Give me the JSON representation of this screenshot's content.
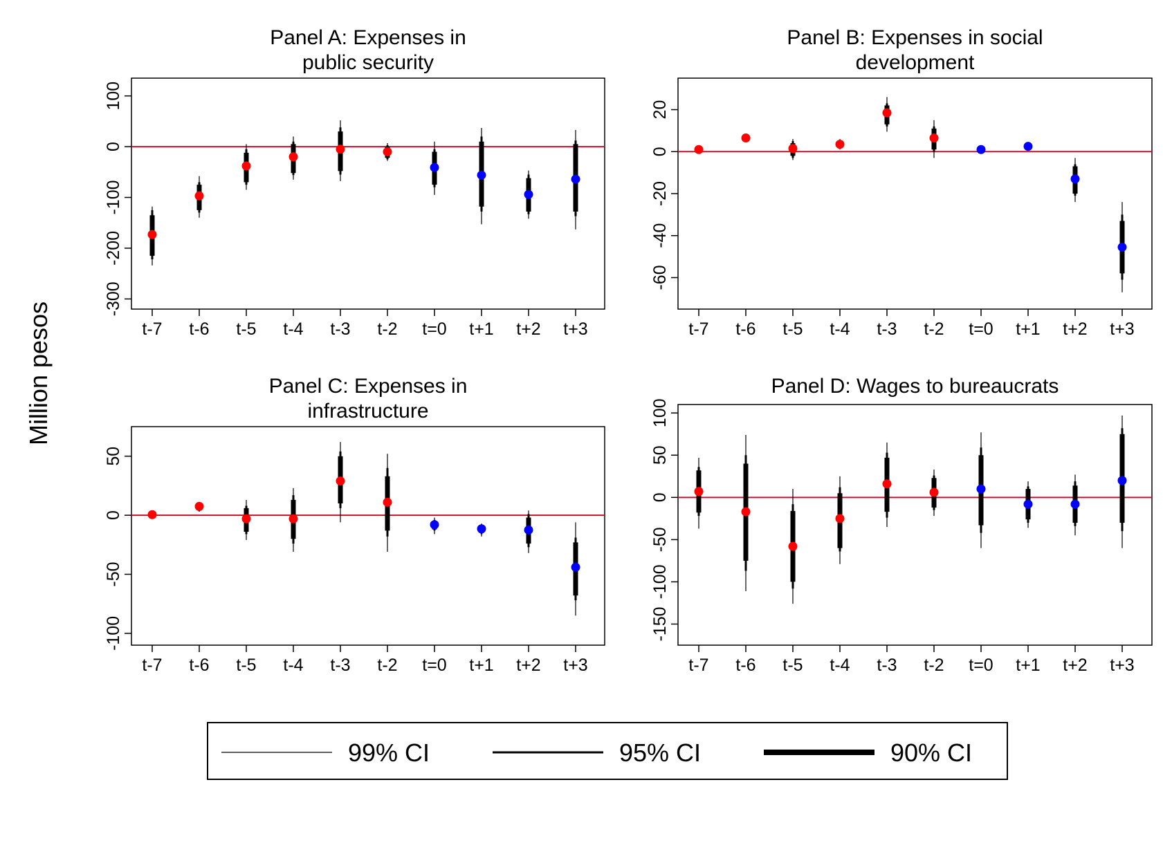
{
  "figure": {
    "ylabel": "Million pesos",
    "legend": [
      {
        "label": "99% CI",
        "stroke_level": "99"
      },
      {
        "label": "95% CI",
        "stroke_level": "95"
      },
      {
        "label": "90% CI",
        "stroke_level": "90"
      }
    ]
  },
  "colors": {
    "pre_point": "#ff0000",
    "post_point": "#0000ff",
    "zero_line": "#c8102e",
    "ci": "#000000"
  },
  "chart_data": [
    {
      "type": "scatter",
      "title_lines": [
        "Panel A: Expenses in",
        "public security"
      ],
      "categories": [
        "t-7",
        "t-6",
        "t-5",
        "t-4",
        "t-3",
        "t-2",
        "t=0",
        "t+1",
        "t+2",
        "t+3"
      ],
      "ylim": [
        -320,
        135
      ],
      "yticks": [
        100,
        0,
        -100,
        -200,
        -300
      ],
      "ytick_labels": [
        "100",
        "0",
        "-100",
        "-200",
        "-300"
      ],
      "points": [
        {
          "x": "t-7",
          "y": -173,
          "group": "pre",
          "ci90": [
            -215,
            -135
          ],
          "ci95": [
            -222,
            -125
          ],
          "ci99": [
            -234,
            -118
          ]
        },
        {
          "x": "t-6",
          "y": -97,
          "group": "pre",
          "ci90": [
            -125,
            -75
          ],
          "ci95": [
            -130,
            -70
          ],
          "ci99": [
            -140,
            -58
          ]
        },
        {
          "x": "t-5",
          "y": -38,
          "group": "pre",
          "ci90": [
            -70,
            -12
          ],
          "ci95": [
            -75,
            -5
          ],
          "ci99": [
            -85,
            5
          ]
        },
        {
          "x": "t-4",
          "y": -20,
          "group": "pre",
          "ci90": [
            -52,
            5
          ],
          "ci95": [
            -56,
            10
          ],
          "ci99": [
            -65,
            20
          ]
        },
        {
          "x": "t-3",
          "y": -5,
          "group": "pre",
          "ci90": [
            -48,
            30
          ],
          "ci95": [
            -55,
            38
          ],
          "ci99": [
            -68,
            52
          ]
        },
        {
          "x": "t-2",
          "y": -10,
          "group": "pre",
          "ci90": [
            -22,
            0
          ],
          "ci95": [
            -25,
            3
          ],
          "ci99": [
            -28,
            7
          ]
        },
        {
          "x": "t=0",
          "y": -41,
          "group": "post",
          "ci90": [
            -75,
            -10
          ],
          "ci95": [
            -80,
            -5
          ],
          "ci99": [
            -95,
            10
          ]
        },
        {
          "x": "t+1",
          "y": -56,
          "group": "post",
          "ci90": [
            -118,
            10
          ],
          "ci95": [
            -128,
            20
          ],
          "ci99": [
            -153,
            37
          ]
        },
        {
          "x": "t+2",
          "y": -94,
          "group": "post",
          "ci90": [
            -128,
            -62
          ],
          "ci95": [
            -133,
            -55
          ],
          "ci99": [
            -142,
            -47
          ]
        },
        {
          "x": "t+3",
          "y": -64,
          "group": "post",
          "ci90": [
            -128,
            5
          ],
          "ci95": [
            -137,
            12
          ],
          "ci99": [
            -163,
            33
          ]
        }
      ]
    },
    {
      "type": "scatter",
      "title_lines": [
        "Panel B: Expenses in social",
        "development"
      ],
      "categories": [
        "t-7",
        "t-6",
        "t-5",
        "t-4",
        "t-3",
        "t-2",
        "t=0",
        "t+1",
        "t+2",
        "t+3"
      ],
      "ylim": [
        -75,
        35
      ],
      "yticks": [
        20,
        0,
        -20,
        -40,
        -60
      ],
      "ytick_labels": [
        "20",
        "0",
        "-20",
        "-40",
        "-60"
      ],
      "points": [
        {
          "x": "t-7",
          "y": 1,
          "group": "pre",
          "ci90": [
            0,
            2
          ],
          "ci95": [
            0,
            2
          ],
          "ci99": [
            -0.5,
            2.5
          ]
        },
        {
          "x": "t-6",
          "y": 6.5,
          "group": "pre",
          "ci90": [
            5.5,
            7.5
          ],
          "ci95": [
            5.5,
            7.5
          ],
          "ci99": [
            5,
            8
          ]
        },
        {
          "x": "t-5",
          "y": 1.5,
          "group": "pre",
          "ci90": [
            -2,
            4
          ],
          "ci95": [
            -3,
            5
          ],
          "ci99": [
            -4,
            6
          ]
        },
        {
          "x": "t-4",
          "y": 3.5,
          "group": "pre",
          "ci90": [
            2,
            5
          ],
          "ci95": [
            1.5,
            5.5
          ],
          "ci99": [
            1,
            6
          ]
        },
        {
          "x": "t-3",
          "y": 18.5,
          "group": "pre",
          "ci90": [
            13,
            22
          ],
          "ci95": [
            12,
            23
          ],
          "ci99": [
            9.5,
            26
          ]
        },
        {
          "x": "t-2",
          "y": 6.5,
          "group": "pre",
          "ci90": [
            1,
            11
          ],
          "ci95": [
            0,
            12
          ],
          "ci99": [
            -3,
            15
          ]
        },
        {
          "x": "t=0",
          "y": 1,
          "group": "post",
          "ci90": [
            0.5,
            1.5
          ],
          "ci95": [
            0.5,
            1.5
          ],
          "ci99": [
            0,
            2
          ]
        },
        {
          "x": "t+1",
          "y": 2.5,
          "group": "post",
          "ci90": [
            2,
            3
          ],
          "ci95": [
            2,
            3
          ],
          "ci99": [
            1.5,
            3.5
          ]
        },
        {
          "x": "t+2",
          "y": -13,
          "group": "post",
          "ci90": [
            -20,
            -7
          ],
          "ci95": [
            -21,
            -6
          ],
          "ci99": [
            -24,
            -3
          ]
        },
        {
          "x": "t+3",
          "y": -45.5,
          "group": "post",
          "ci90": [
            -58,
            -33
          ],
          "ci95": [
            -61,
            -30
          ],
          "ci99": [
            -67,
            -24
          ]
        }
      ]
    },
    {
      "type": "scatter",
      "title_lines": [
        "Panel C: Expenses in",
        "infrastructure"
      ],
      "categories": [
        "t-7",
        "t-6",
        "t-5",
        "t-4",
        "t-3",
        "t-2",
        "t=0",
        "t+1",
        "t+2",
        "t+3"
      ],
      "ylim": [
        -110,
        75
      ],
      "yticks": [
        50,
        0,
        -50,
        -100
      ],
      "ytick_labels": [
        "50",
        "0",
        "-50",
        "-100"
      ],
      "points": [
        {
          "x": "t-7",
          "y": 0.5,
          "group": "pre",
          "ci90": [
            0,
            1
          ],
          "ci95": [
            0,
            1
          ],
          "ci99": [
            -0.5,
            1.5
          ]
        },
        {
          "x": "t-6",
          "y": 7.5,
          "group": "pre",
          "ci90": [
            4,
            10
          ],
          "ci95": [
            3.5,
            10.5
          ],
          "ci99": [
            3,
            11
          ]
        },
        {
          "x": "t-5",
          "y": -3,
          "group": "pre",
          "ci90": [
            -14,
            6
          ],
          "ci95": [
            -16,
            8
          ],
          "ci99": [
            -21,
            13
          ]
        },
        {
          "x": "t-4",
          "y": -3,
          "group": "pre",
          "ci90": [
            -20,
            13
          ],
          "ci95": [
            -24,
            17
          ],
          "ci99": [
            -31,
            23
          ]
        },
        {
          "x": "t-3",
          "y": 29,
          "group": "pre",
          "ci90": [
            10,
            50
          ],
          "ci95": [
            6,
            54
          ],
          "ci99": [
            -6,
            62
          ]
        },
        {
          "x": "t-2",
          "y": 11,
          "group": "pre",
          "ci90": [
            -13,
            33
          ],
          "ci95": [
            -18,
            40
          ],
          "ci99": [
            -31,
            52
          ]
        },
        {
          "x": "t=0",
          "y": -8,
          "group": "post",
          "ci90": [
            -12,
            -5
          ],
          "ci95": [
            -13,
            -4
          ],
          "ci99": [
            -16,
            -2
          ]
        },
        {
          "x": "t+1",
          "y": -11.5,
          "group": "post",
          "ci90": [
            -15,
            -9
          ],
          "ci95": [
            -16,
            -8
          ],
          "ci99": [
            -18,
            -7
          ]
        },
        {
          "x": "t+2",
          "y": -12.5,
          "group": "post",
          "ci90": [
            -24,
            -2
          ],
          "ci95": [
            -27,
            1
          ],
          "ci99": [
            -32,
            4
          ]
        },
        {
          "x": "t+3",
          "y": -44,
          "group": "post",
          "ci90": [
            -68,
            -23
          ],
          "ci95": [
            -72,
            -19
          ],
          "ci99": [
            -85,
            -6
          ]
        }
      ]
    },
    {
      "type": "scatter",
      "title_lines": [
        "Panel D: Wages to bureaucrats"
      ],
      "categories": [
        "t-7",
        "t-6",
        "t-5",
        "t-4",
        "t-3",
        "t-2",
        "t=0",
        "t+1",
        "t+2",
        "t+3"
      ],
      "ylim": [
        -175,
        110
      ],
      "yticks": [
        100,
        50,
        0,
        -50,
        -100,
        -150
      ],
      "ytick_labels": [
        "100",
        "50",
        "0",
        "-50",
        "-100",
        "-150"
      ],
      "points": [
        {
          "x": "t-7",
          "y": 7,
          "group": "pre",
          "ci90": [
            -18,
            32
          ],
          "ci95": [
            -22,
            36
          ],
          "ci99": [
            -37,
            47
          ]
        },
        {
          "x": "t-6",
          "y": -17,
          "group": "pre",
          "ci90": [
            -75,
            40
          ],
          "ci95": [
            -87,
            50
          ],
          "ci99": [
            -111,
            74
          ]
        },
        {
          "x": "t-5",
          "y": -58,
          "group": "pre",
          "ci90": [
            -100,
            -16
          ],
          "ci95": [
            -108,
            -8
          ],
          "ci99": [
            -126,
            10
          ]
        },
        {
          "x": "t-4",
          "y": -25,
          "group": "pre",
          "ci90": [
            -60,
            5
          ],
          "ci95": [
            -64,
            12
          ],
          "ci99": [
            -79,
            25
          ]
        },
        {
          "x": "t-3",
          "y": 16,
          "group": "pre",
          "ci90": [
            -17,
            47
          ],
          "ci95": [
            -24,
            53
          ],
          "ci99": [
            -35,
            65
          ]
        },
        {
          "x": "t-2",
          "y": 6,
          "group": "pre",
          "ci90": [
            -12,
            23
          ],
          "ci95": [
            -15,
            26
          ],
          "ci99": [
            -22,
            33
          ]
        },
        {
          "x": "t=0",
          "y": 10,
          "group": "post",
          "ci90": [
            -33,
            50
          ],
          "ci95": [
            -42,
            59
          ],
          "ci99": [
            -60,
            77
          ]
        },
        {
          "x": "t+1",
          "y": -8,
          "group": "post",
          "ci90": [
            -26,
            10
          ],
          "ci95": [
            -30,
            13
          ],
          "ci99": [
            -36,
            19
          ]
        },
        {
          "x": "t+2",
          "y": -8,
          "group": "post",
          "ci90": [
            -30,
            14
          ],
          "ci95": [
            -34,
            19
          ],
          "ci99": [
            -45,
            27
          ]
        },
        {
          "x": "t+3",
          "y": 20,
          "group": "post",
          "ci90": [
            -30,
            75
          ],
          "ci95": [
            -40,
            82
          ],
          "ci99": [
            -60,
            97
          ]
        }
      ]
    }
  ]
}
